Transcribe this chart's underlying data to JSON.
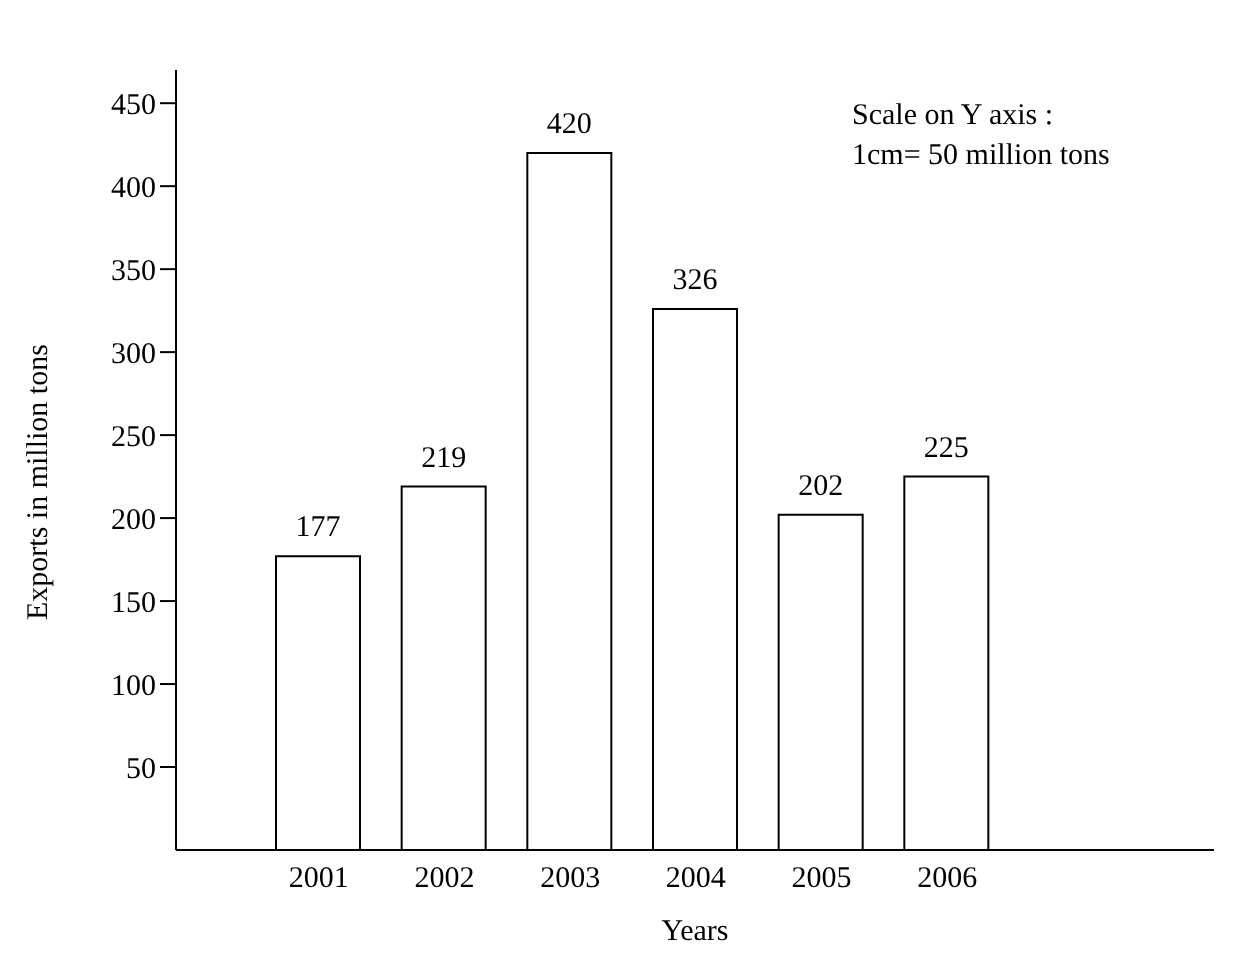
{
  "chart_data": {
    "type": "bar",
    "xlabel": "Years",
    "ylabel": "Exports in million tons",
    "categories": [
      "2001",
      "2002",
      "2003",
      "2004",
      "2005",
      "2006"
    ],
    "values": [
      177,
      219,
      420,
      326,
      202,
      225
    ],
    "color": "#ffffff",
    "ylim": [
      0,
      470
    ],
    "yticks": [
      50,
      100,
      150,
      200,
      250,
      300,
      350,
      400,
      450
    ],
    "data_labels": true,
    "annotations": [
      "Scale on Y axis :",
      "1cm= 50 million tons"
    ]
  }
}
